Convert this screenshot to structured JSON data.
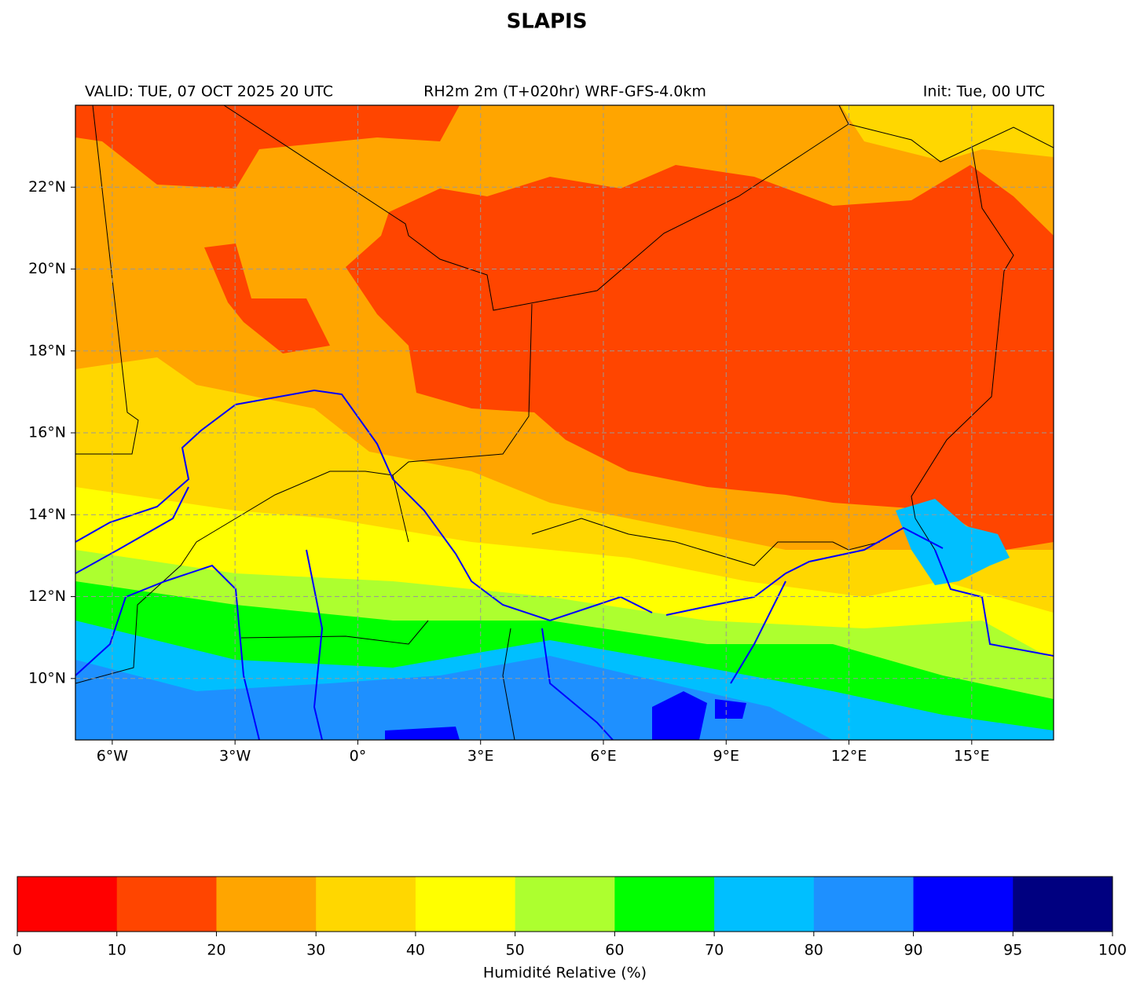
{
  "title": "SLAPIS",
  "header": {
    "valid": "VALID: TUE, 07 OCT 2025 20 UTC",
    "field": "RH2m 2m (T+020hr) WRF-GFS-4.0km",
    "init": "Init: Tue, 00 UTC"
  },
  "map": {
    "xlim": [
      -6.9,
      17
    ],
    "ylim": [
      8.5,
      24
    ],
    "xticks": [
      {
        "value": -6,
        "label": "6°W"
      },
      {
        "value": -3,
        "label": "3°W"
      },
      {
        "value": 0,
        "label": "0°"
      },
      {
        "value": 3,
        "label": "3°E"
      },
      {
        "value": 6,
        "label": "6°E"
      },
      {
        "value": 9,
        "label": "9°E"
      },
      {
        "value": 12,
        "label": "12°E"
      },
      {
        "value": 15,
        "label": "15°E"
      }
    ],
    "yticks": [
      {
        "value": 10,
        "label": "10°N"
      },
      {
        "value": 12,
        "label": "12°N"
      },
      {
        "value": 14,
        "label": "14°N"
      },
      {
        "value": 16,
        "label": "16°N"
      },
      {
        "value": 18,
        "label": "18°N"
      },
      {
        "value": 20,
        "label": "20°N"
      },
      {
        "value": 22,
        "label": "22°N"
      }
    ],
    "grid": true
  },
  "colorbar": {
    "label": "Humidité Relative (%)",
    "bounds": [
      0,
      10,
      20,
      30,
      40,
      50,
      60,
      70,
      80,
      90,
      95,
      100
    ],
    "colors": [
      "#ff0000",
      "#ff4500",
      "#ffa500",
      "#ffd700",
      "#ffff00",
      "#adff2f",
      "#00ff00",
      "#00bfff",
      "#1e90ff",
      "#0000ff",
      "#000080"
    ]
  }
}
